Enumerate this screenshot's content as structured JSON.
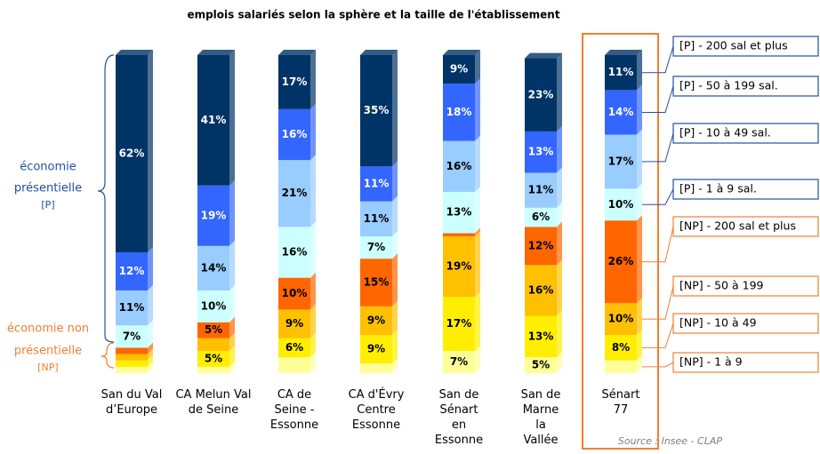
{
  "chart_data": {
    "type": "stacked_bar",
    "title": "emplois salariés selon la sphère et la taille de l'établissement",
    "categories": [
      "San du Val\nd’Europe",
      "CA Melun Val\nde Seine",
      "CA de\nSeine -\nEssonne",
      "CA d'Évry\nCentre\nEssonne",
      "San de\nSénart\nen\nEssonne",
      "San de\nMarne\nla\nVallée",
      "Sénart\n77"
    ],
    "series": [
      {
        "name": "[NP] - 1 à 9",
        "color": "#ffff99",
        "values": [
          2,
          2,
          5,
          3,
          7,
          5,
          4
        ],
        "value_labels": [
          null,
          null,
          null,
          null,
          "7%",
          "5%",
          null
        ]
      },
      {
        "name": "[NP] - 10 à 49",
        "color": "#ffee00",
        "values": [
          2,
          5,
          6,
          9,
          17,
          13,
          8
        ],
        "value_labels": [
          null,
          "5%",
          "6%",
          "9%",
          "17%",
          "13%",
          "8%"
        ]
      },
      {
        "name": "[NP] - 50 à 199",
        "color": "#ffc000",
        "values": [
          2,
          4,
          9,
          9,
          19,
          16,
          10
        ],
        "value_labels": [
          null,
          null,
          "9%",
          "9%",
          "19%",
          "16%",
          "10%"
        ]
      },
      {
        "name": "[NP] - 200 sal et plus",
        "color": "#ff6600",
        "values": [
          2,
          5,
          10,
          15,
          1,
          12,
          26
        ],
        "value_labels": [
          null,
          "5%",
          "10%",
          "15%",
          null,
          "12%",
          "26%"
        ]
      },
      {
        "name": "[P] -  1 à 9 sal.",
        "color": "#ccffff",
        "values": [
          7,
          10,
          16,
          7,
          13,
          6,
          10
        ],
        "value_labels": [
          "7%",
          "10%",
          "16%",
          "7%",
          "13%",
          "6%",
          "10%"
        ]
      },
      {
        "name": "[P] - 10 à 49 sal.",
        "color": "#99ccff",
        "values": [
          11,
          14,
          21,
          11,
          16,
          11,
          17
        ],
        "value_labels": [
          "11%",
          "14%",
          "21%",
          "11%",
          "16%",
          "11%",
          "17%"
        ]
      },
      {
        "name": "[P] - 50 à 199 sal.",
        "color": "#3366ff",
        "values": [
          12,
          19,
          16,
          11,
          18,
          13,
          14
        ],
        "value_labels": [
          "12%",
          "19%",
          "16%",
          "11%",
          "18%",
          "13%",
          "14%"
        ]
      },
      {
        "name": "[P] -  200 sal et plus",
        "color": "#003366",
        "values": [
          62,
          41,
          17,
          35,
          9,
          23,
          11
        ],
        "value_labels": [
          "62%",
          "41%",
          "17%",
          "35%",
          "9%",
          "23%",
          "11%"
        ]
      }
    ],
    "ylim": [
      0,
      100
    ],
    "annotations": {
      "presentielle": [
        "économie",
        "présentielle",
        "[P]"
      ],
      "non_presentielle": [
        "économie non",
        "présentielle",
        "[NP]"
      ]
    },
    "source": "Source : Insee - CLAP"
  }
}
